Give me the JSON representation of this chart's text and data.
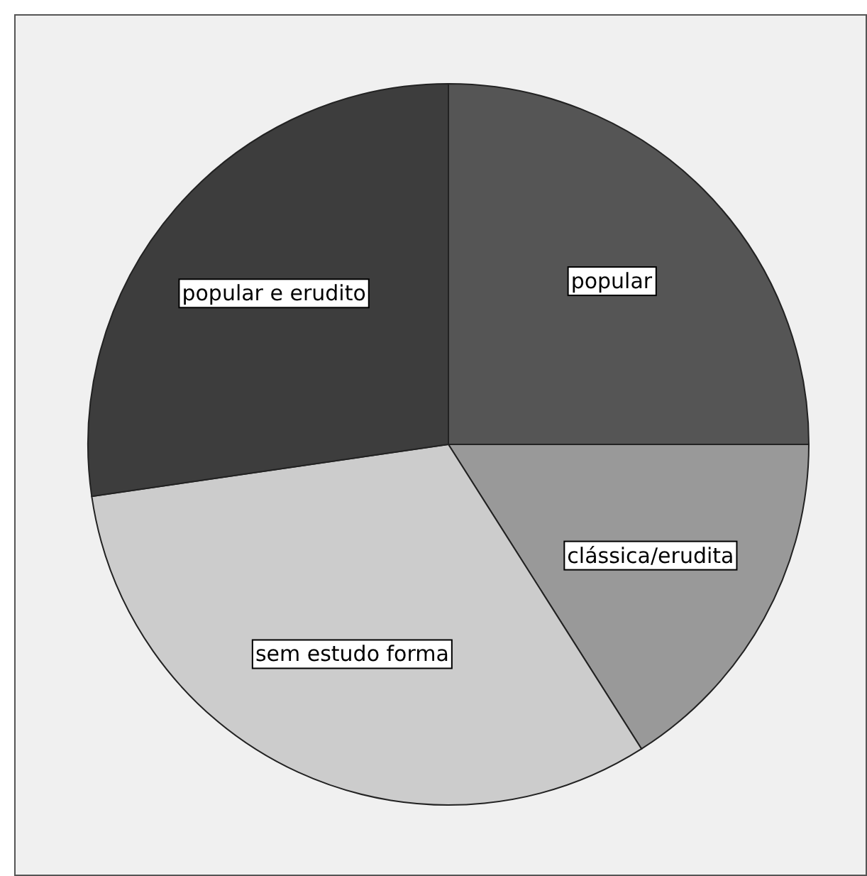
{
  "chart_data": {
    "type": "pie",
    "categories": [
      "popular",
      "clássica/erudita",
      "sem estudo forma",
      "popular e erudito"
    ],
    "values": [
      25,
      16,
      31.7,
      27.3
    ],
    "colors": [
      "#555555",
      "#999999",
      "#cccccc",
      "#3d3d3d"
    ]
  }
}
